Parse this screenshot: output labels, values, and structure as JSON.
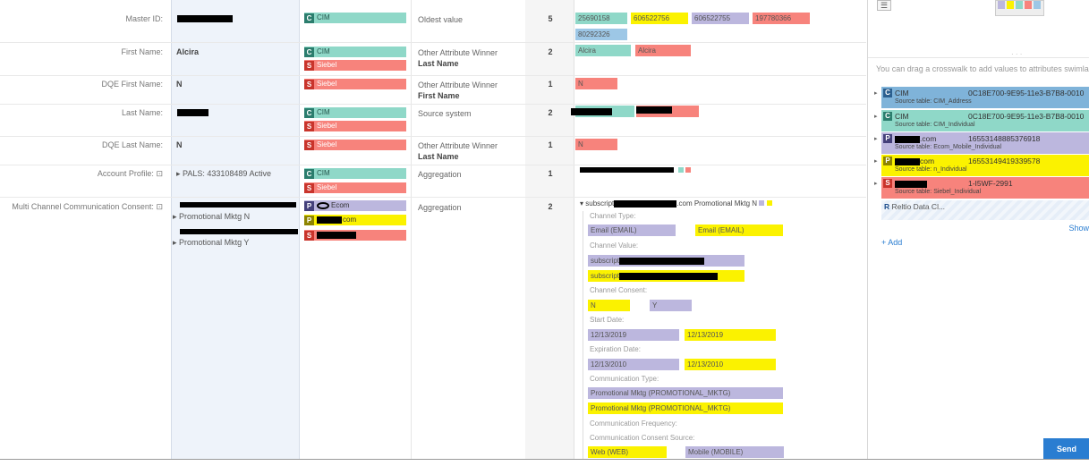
{
  "rows": [
    {
      "label": "Master ID:",
      "value": "",
      "rule": "Oldest value",
      "rule_sub": "",
      "count": "5"
    },
    {
      "label": "First Name:",
      "value": "Alcira",
      "rule": "Other Attribute Winner",
      "rule_sub": "Last Name",
      "count": "2"
    },
    {
      "label": "DQE First Name:",
      "value": "N",
      "rule": "Other Attribute Winner",
      "rule_sub": "First Name",
      "count": "1"
    },
    {
      "label": "Last Name:",
      "value": "",
      "rule": "Source system",
      "rule_sub": "",
      "count": "2"
    },
    {
      "label": "DQE Last Name:",
      "value": "N",
      "rule": "Other Attribute Winner",
      "rule_sub": "Last Name",
      "count": "1"
    },
    {
      "label": "Account Profile:",
      "value": "PALS: 433108489 Active",
      "rule": "Aggregation",
      "rule_sub": "",
      "count": "1"
    },
    {
      "label": "Multi Channel Communication Consent:",
      "value": "",
      "rule": "Aggregation",
      "rule_sub": "",
      "count": "2"
    }
  ],
  "sources": {
    "cim": "CIM",
    "siebel": "Siebel",
    "tag_c": "C",
    "tag_s": "S",
    "tag_p": "P",
    "ecom_suffix": "Ecom",
    "com_suffix": "com"
  },
  "master_values": [
    "25690158",
    "606522756",
    "606522755",
    "197780366",
    "80292326"
  ],
  "first_name_values": [
    "Alcira",
    "Alcira"
  ],
  "dqe_value": "N",
  "consent": {
    "value_items": [
      "Promotional Mktg N",
      "Promotional Mktg Y"
    ],
    "header_suffix": ".com Promotional Mktg N",
    "channel_type_label": "Channel Type:",
    "channel_type_values": [
      "Email (EMAIL)",
      "Email (EMAIL)"
    ],
    "channel_value_label": "Channel Value:",
    "channel_value_prefix": "subscript",
    "channel_consent_label": "Channel Consent:",
    "channel_consent_values": [
      "N",
      "Y"
    ],
    "start_date_label": "Start Date:",
    "start_date_values": [
      "12/13/2019",
      "12/13/2019"
    ],
    "expiration_label": "Expiration Date:",
    "expiration_values": [
      "12/13/2010",
      "12/13/2010"
    ],
    "comm_type_label": "Communication Type:",
    "comm_type_values": [
      "Promotional Mktg (PROMOTIONAL_MKTG)",
      "Promotional Mktg (PROMOTIONAL_MKTG)"
    ],
    "comm_freq_label": "Communication Frequency:",
    "comm_source_label": "Communication Consent Source:",
    "comm_source_values": [
      "Web (WEB)",
      "Mobile (MOBILE)"
    ]
  },
  "panel": {
    "hint": "You can drag a crosswalk to add values to attributes swimla",
    "crosswalks": [
      {
        "tag": "C",
        "name": "CIM",
        "id": "0C18E700-9E95-11e3-B7B8-0010",
        "source_table": "Source table: CIM_Address",
        "color": "#7fb3d9",
        "tagcolor": "#2b5f8f"
      },
      {
        "tag": "C",
        "name": "CIM",
        "id": "0C18E700-9E95-11e3-B7B8-0010",
        "source_table": "Source table: CIM_Individual",
        "color": "#8fd8c8",
        "tagcolor": "#2b7d6d"
      },
      {
        "tag": "P",
        "name": ".com",
        "id": "16553148885376918",
        "source_table": "Source table: Ecom_Mobile_Individual",
        "color": "#bcb7de",
        "tagcolor": "#44407a"
      },
      {
        "tag": "P",
        "name": "com",
        "id": "16553149419339578",
        "source_table": "Source table: n_Individual",
        "color": "#fbf200",
        "tagcolor": "#8d8400"
      },
      {
        "tag": "S",
        "name": "",
        "id": "1-I5WF-2991",
        "source_table": "Source table: Siebel_Individual",
        "color": "#f7837c",
        "tagcolor": "#c9342b"
      }
    ],
    "reltio_label": "Reltio Data Cl...",
    "show_label": "Show",
    "add_label": "+ Add",
    "send_label": "Send",
    "menu_icon": "☰"
  }
}
